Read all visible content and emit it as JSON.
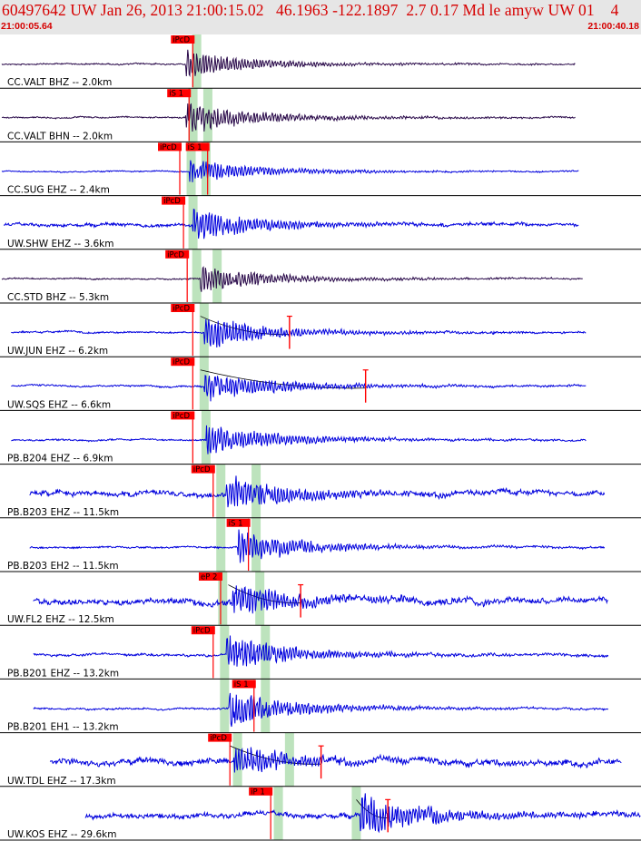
{
  "header": {
    "title": "60497642 UW Jan 26, 2013 21:00:15.02   46.1963 -122.1897  2.7 0.17 Md le amyw UW 01    4",
    "start_time": "21:00:05.64",
    "end_time": "21:00:40.18"
  },
  "colors": {
    "header_text": "#d60000",
    "header_bg": "#e6e6e6",
    "trace_blue": "#0000dd",
    "trace_dark": "#2a0a4a",
    "pick_box": "#ff0000",
    "window_band": "#bde3bd",
    "theoretical_curve": "#000000",
    "amp_marker": "#ff0000"
  },
  "chart_data": {
    "type": "line",
    "title": "60497642 UW Jan 26, 2013 21:00:15.02   46.1963 -122.1897  2.7 0.17 Md le amyw UW 01    4",
    "xlabel": "",
    "ylabel": "",
    "x_range": [
      "21:00:05.64",
      "21:00:40.18"
    ],
    "x_range_seconds": [
      0,
      34.54
    ],
    "grid": "horizontal separators between traces",
    "traces": [
      {
        "label": "CC.VALT BHZ -- 2.0km",
        "color": "dark",
        "picks": [
          {
            "label": "iPcD",
            "t": 9.8
          }
        ],
        "bands": [
          10.6
        ],
        "start": 0.1,
        "end": 31.0,
        "amp": 14,
        "noise": 1.2,
        "onset": 10.0
      },
      {
        "label": "CC.VALT BHN -- 2.0km",
        "color": "dark",
        "picks": [
          {
            "label": "iS 1",
            "t": 9.6
          }
        ],
        "bands": [
          10.4,
          11.2
        ],
        "start": 0.1,
        "end": 31.0,
        "amp": 16,
        "noise": 1.2,
        "onset": 10.0
      },
      {
        "label": "CC.SUG EHZ -- 2.4km",
        "color": "blue",
        "picks": [
          {
            "label": "iPcD",
            "t": 9.1
          },
          {
            "label": "iS 1",
            "t": 10.6
          }
        ],
        "bands": [
          10.3,
          11.1
        ],
        "start": 0.1,
        "end": 31.2,
        "amp": 13,
        "noise": 1.0,
        "onset": 10.2
      },
      {
        "label": "UW.SHW EHZ -- 3.6km",
        "color": "blue",
        "picks": [
          {
            "label": "iPcD",
            "t": 9.3
          }
        ],
        "bands": [
          10.4
        ],
        "start": 0.2,
        "end": 31.2,
        "amp": 17,
        "noise": 2.5,
        "onset": 10.4
      },
      {
        "label": "CC.STD BHZ -- 5.3km",
        "color": "dark",
        "picks": [
          {
            "label": "iPcD",
            "t": 9.5
          }
        ],
        "bands": [
          10.6,
          11.7
        ],
        "start": 0.1,
        "end": 31.4,
        "amp": 14,
        "noise": 1.2,
        "onset": 10.8
      },
      {
        "label": "UW.JUN EHZ -- 6.2km",
        "color": "blue",
        "picks": [
          {
            "label": "iPcD",
            "t": 9.8
          }
        ],
        "bands": [
          11.0
        ],
        "start": 0.6,
        "end": 31.6,
        "amp": 16,
        "noise": 1.5,
        "onset": 11.0,
        "amp_mark": 15.6
      },
      {
        "label": "UW.SQS EHZ -- 6.6km",
        "color": "blue",
        "picks": [
          {
            "label": "iPcD",
            "t": 9.8
          }
        ],
        "bands": [
          11.0
        ],
        "start": 0.6,
        "end": 31.6,
        "amp": 16,
        "noise": 1.5,
        "onset": 11.0,
        "amp_mark": 19.7
      },
      {
        "label": "PB.B204 EHZ -- 6.9km",
        "color": "blue",
        "picks": [
          {
            "label": "iPcD",
            "t": 9.8
          }
        ],
        "bands": [
          11.1
        ],
        "start": 0.6,
        "end": 31.6,
        "amp": 16,
        "noise": 1.5,
        "onset": 11.1
      },
      {
        "label": "PB.B203 EHZ -- 11.5km",
        "color": "blue",
        "picks": [
          {
            "label": "iPcD",
            "t": 10.9
          }
        ],
        "bands": [
          11.9,
          13.8
        ],
        "start": 1.6,
        "end": 32.6,
        "amp": 18,
        "noise": 4.0,
        "onset": 12.2
      },
      {
        "label": "PB.B203 EH2 -- 11.5km",
        "color": "blue",
        "picks": [
          {
            "label": "iS 1",
            "t": 12.8
          }
        ],
        "bands": [
          11.9,
          13.8
        ],
        "start": 1.6,
        "end": 32.6,
        "amp": 17,
        "noise": 1.5,
        "onset": 12.8
      },
      {
        "label": "UW.FL2 EHZ -- 12.5km",
        "color": "blue",
        "picks": [
          {
            "label": "eP 2",
            "t": 11.3
          }
        ],
        "bands": [
          12.0,
          14.0
        ],
        "start": 1.8,
        "end": 32.8,
        "amp": 16,
        "noise": 5.0,
        "onset": 12.5,
        "amp_mark": 16.2
      },
      {
        "label": "PB.B201 EHZ -- 13.2km",
        "color": "blue",
        "picks": [
          {
            "label": "iPcD",
            "t": 10.9
          }
        ],
        "bands": [
          12.1,
          14.3
        ],
        "start": 1.8,
        "end": 32.8,
        "amp": 18,
        "noise": 2.0,
        "onset": 12.2
      },
      {
        "label": "PB.B201 EH1 -- 13.2km",
        "color": "blue",
        "picks": [
          {
            "label": "iS 1",
            "t": 13.1
          }
        ],
        "bands": [
          12.1,
          14.3
        ],
        "start": 1.8,
        "end": 32.8,
        "amp": 18,
        "noise": 1.5,
        "onset": 12.3
      },
      {
        "label": "UW.TDL EHZ -- 17.3km",
        "color": "blue",
        "picks": [
          {
            "label": "iPcD",
            "t": 11.8
          }
        ],
        "bands": [
          12.8,
          15.6
        ],
        "start": 2.7,
        "end": 33.5,
        "amp": 15,
        "noise": 5.0,
        "onset": 12.6,
        "amp_mark": 17.3
      },
      {
        "label": "UW.KOS EHZ -- 29.6km",
        "color": "blue",
        "picks": [
          {
            "label": "iP 1",
            "t": 14.0
          }
        ],
        "bands": [
          15.0,
          19.2
        ],
        "start": 4.6,
        "end": 34.54,
        "amp": 20,
        "noise": 4.0,
        "onset": 19.4,
        "amp_mark": 20.9
      }
    ]
  }
}
